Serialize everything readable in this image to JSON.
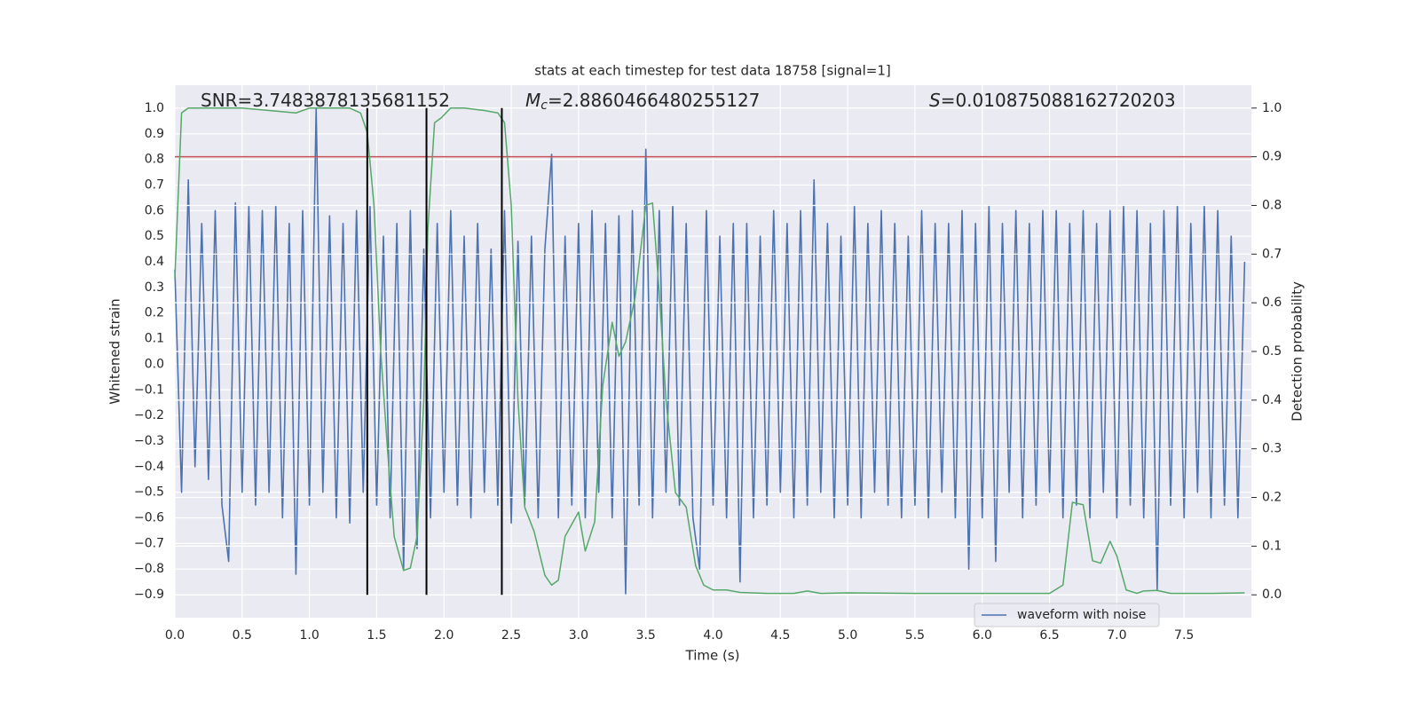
{
  "chart_data": {
    "type": "line",
    "title": "stats at each timestep for test data 18758 [signal=1]",
    "x_label": "Time (s)",
    "y_label": "Whitened strain",
    "y2_label": "Detection probability",
    "annotations": [
      {
        "text": "SNR=3.7483878135681152"
      },
      {
        "symbol": "M",
        "subscript": "c",
        "text": "=2.8860466480255127"
      },
      {
        "symbol": "S",
        "text": "=0.010875088162720203"
      }
    ],
    "xlim": [
      0,
      8
    ],
    "xticks": [
      {
        "value": 0,
        "label": "0.0"
      },
      0.5,
      {
        "value": 1,
        "label": "1.0"
      },
      1.5,
      {
        "value": 2,
        "label": "2.0"
      },
      2.5,
      {
        "value": 3,
        "label": "3.0"
      },
      3.5,
      {
        "value": 4,
        "label": "4.0"
      },
      4.5,
      {
        "value": 5,
        "label": "5.0"
      },
      5.5,
      {
        "value": 6,
        "label": "6.0"
      },
      6.5,
      {
        "value": 7,
        "label": "7.0"
      },
      7.5
    ],
    "ylim": [
      -0.99,
      1.09
    ],
    "yticks": [
      {
        "value": -0.9,
        "label": "−0.9"
      },
      {
        "value": -0.8,
        "label": "−0.8"
      },
      {
        "value": -0.7,
        "label": "−0.7"
      },
      {
        "value": -0.6,
        "label": "−0.6"
      },
      {
        "value": -0.5,
        "label": "−0.5"
      },
      {
        "value": -0.4,
        "label": "−0.4"
      },
      {
        "value": -0.3,
        "label": "−0.3"
      },
      {
        "value": -0.2,
        "label": "−0.2"
      },
      {
        "value": -0.1,
        "label": "−0.1"
      },
      {
        "value": 0,
        "label": "0.0"
      },
      0.1,
      0.2,
      0.3,
      0.4,
      0.5,
      0.6,
      0.7,
      0.8,
      0.9,
      {
        "value": 1,
        "label": "1.0"
      }
    ],
    "y2lim": [
      -0.047,
      1.047
    ],
    "y2ticks": [
      {
        "value": 0,
        "label": "0.0"
      },
      0.1,
      0.2,
      0.3,
      0.4,
      0.5,
      0.6,
      0.7,
      0.8,
      0.9,
      {
        "value": 1,
        "label": "1.0"
      }
    ],
    "grid": true,
    "legend": "lower right",
    "series": [
      {
        "name": "waveform with noise",
        "color": "#4c72b0",
        "x": [
          0,
          0.05,
          0.1,
          0.15,
          0.2,
          0.25,
          0.3,
          0.35,
          0.4,
          0.45,
          0.5,
          0.55,
          0.6,
          0.65,
          0.7,
          0.75,
          0.8,
          0.85,
          0.9,
          0.95,
          1,
          1.05,
          1.1,
          1.15,
          1.2,
          1.25,
          1.3,
          1.35,
          1.4,
          1.45,
          1.5,
          1.55,
          1.6,
          1.65,
          1.7,
          1.75,
          1.8,
          1.85,
          1.9,
          1.95,
          2,
          2.05,
          2.1,
          2.15,
          2.2,
          2.25,
          2.3,
          2.35,
          2.4,
          2.45,
          2.5,
          2.55,
          2.6,
          2.65,
          2.7,
          2.75,
          2.8,
          2.85,
          2.9,
          2.95,
          3,
          3.05,
          3.1,
          3.15,
          3.2,
          3.25,
          3.3,
          3.35,
          3.4,
          3.45,
          3.5,
          3.55,
          3.6,
          3.65,
          3.7,
          3.75,
          3.8,
          3.85,
          3.9,
          3.95,
          4,
          4.05,
          4.1,
          4.15,
          4.2,
          4.25,
          4.3,
          4.35,
          4.4,
          4.45,
          4.5,
          4.55,
          4.6,
          4.65,
          4.7,
          4.75,
          4.8,
          4.85,
          4.9,
          4.95,
          5,
          5.05,
          5.1,
          5.15,
          5.2,
          5.25,
          5.3,
          5.35,
          5.4,
          5.45,
          5.5,
          5.55,
          5.6,
          5.65,
          5.7,
          5.75,
          5.8,
          5.85,
          5.9,
          5.95,
          6,
          6.05,
          6.1,
          6.15,
          6.2,
          6.25,
          6.3,
          6.35,
          6.4,
          6.45,
          6.5,
          6.55,
          6.6,
          6.65,
          6.7,
          6.75,
          6.8,
          6.85,
          6.9,
          6.95,
          7,
          7.05,
          7.1,
          7.15,
          7.2,
          7.25,
          7.3,
          7.35,
          7.4,
          7.45,
          7.5,
          7.55,
          7.6,
          7.65,
          7.7,
          7.75,
          7.8,
          7.85,
          7.9,
          7.95
        ],
        "values": [
          0.37,
          -0.5,
          0.72,
          -0.4,
          0.55,
          -0.45,
          0.6,
          -0.55,
          -0.77,
          0.63,
          -0.5,
          0.62,
          -0.55,
          0.6,
          -0.5,
          0.62,
          -0.6,
          0.55,
          -0.82,
          0.6,
          -0.55,
          1.0,
          -0.5,
          0.58,
          -0.6,
          0.55,
          -0.62,
          0.6,
          -0.5,
          0.62,
          -0.55,
          0.5,
          -0.6,
          0.55,
          -0.8,
          0.6,
          -0.72,
          0.45,
          -0.6,
          0.55,
          -0.5,
          0.6,
          -0.55,
          0.5,
          -0.6,
          0.55,
          -0.5,
          0.45,
          -0.55,
          0.6,
          -0.62,
          0.48,
          -0.55,
          0.5,
          -0.6,
          0.45,
          0.82,
          -0.6,
          0.5,
          -0.55,
          0.55,
          -0.6,
          0.6,
          -0.5,
          0.55,
          -0.6,
          0.58,
          -0.9,
          0.6,
          -0.55,
          0.84,
          -0.6,
          0.6,
          -0.5,
          0.62,
          -0.55,
          0.55,
          -0.6,
          -0.8,
          0.6,
          -0.55,
          0.5,
          -0.6,
          0.55,
          -0.85,
          0.55,
          -0.6,
          0.5,
          -0.55,
          0.6,
          -0.5,
          0.55,
          -0.6,
          0.6,
          -0.55,
          0.72,
          -0.5,
          0.55,
          -0.6,
          0.5,
          -0.55,
          0.62,
          -0.6,
          0.55,
          -0.5,
          0.6,
          -0.55,
          0.55,
          -0.6,
          0.5,
          -0.55,
          0.6,
          -0.6,
          0.55,
          -0.5,
          0.55,
          -0.6,
          0.6,
          -0.8,
          0.55,
          -0.6,
          0.62,
          -0.77,
          0.55,
          -0.5,
          0.6,
          -0.6,
          0.55,
          -0.55,
          0.6,
          -0.5,
          0.6,
          -0.6,
          0.55,
          -0.55,
          0.6,
          -0.6,
          0.55,
          -0.5,
          0.6,
          -0.6,
          0.62,
          -0.55,
          0.6,
          -0.6,
          0.55,
          -0.88,
          0.6,
          -0.55,
          0.62,
          -0.6,
          0.55,
          -0.5,
          0.62,
          -0.6,
          0.6,
          -0.55,
          0.5,
          -0.6,
          0.4
        ]
      },
      {
        "color": "#55a868",
        "axis": "y2",
        "x": [
          0,
          0.05,
          0.1,
          0.2,
          0.5,
          0.9,
          1.0,
          1.3,
          1.38,
          1.43,
          1.48,
          1.53,
          1.58,
          1.63,
          1.7,
          1.75,
          1.8,
          1.85,
          1.88,
          1.93,
          1.98,
          2.05,
          2.15,
          2.3,
          2.4,
          2.45,
          2.5,
          2.55,
          2.6,
          2.67,
          2.75,
          2.8,
          2.85,
          2.9,
          3.0,
          3.05,
          3.12,
          3.18,
          3.25,
          3.3,
          3.35,
          3.42,
          3.5,
          3.55,
          3.6,
          3.65,
          3.72,
          3.8,
          3.87,
          3.93,
          4.0,
          4.1,
          4.2,
          4.4,
          4.6,
          4.7,
          4.8,
          5.0,
          5.5,
          6.0,
          6.5,
          6.6,
          6.67,
          6.75,
          6.82,
          6.88,
          6.95,
          7.0,
          7.07,
          7.15,
          7.2,
          7.3,
          7.4,
          7.7,
          7.95
        ],
        "values": [
          0.65,
          0.99,
          1.0,
          1.0,
          1.0,
          0.99,
          1.0,
          1.0,
          0.99,
          0.95,
          0.8,
          0.5,
          0.3,
          0.12,
          0.05,
          0.055,
          0.12,
          0.4,
          0.75,
          0.97,
          0.98,
          1.0,
          1.0,
          0.995,
          0.99,
          0.97,
          0.8,
          0.4,
          0.18,
          0.13,
          0.04,
          0.02,
          0.03,
          0.12,
          0.17,
          0.09,
          0.15,
          0.43,
          0.56,
          0.49,
          0.52,
          0.61,
          0.8,
          0.805,
          0.62,
          0.4,
          0.21,
          0.18,
          0.06,
          0.02,
          0.01,
          0.01,
          0.005,
          0.003,
          0.003,
          0.008,
          0.003,
          0.004,
          0.003,
          0.003,
          0.003,
          0.02,
          0.19,
          0.185,
          0.07,
          0.065,
          0.11,
          0.08,
          0.01,
          0.003,
          0.008,
          0.009,
          0.003,
          0.003,
          0.004
        ]
      }
    ],
    "markers": {
      "x": [
        1.43,
        1.87,
        2.43
      ],
      "ymin": 0,
      "ymax": 1,
      "axis": "y2",
      "color": "#000000"
    },
    "threshold": {
      "y": 0.9,
      "axis": "y2",
      "color": "#c44e52"
    }
  }
}
